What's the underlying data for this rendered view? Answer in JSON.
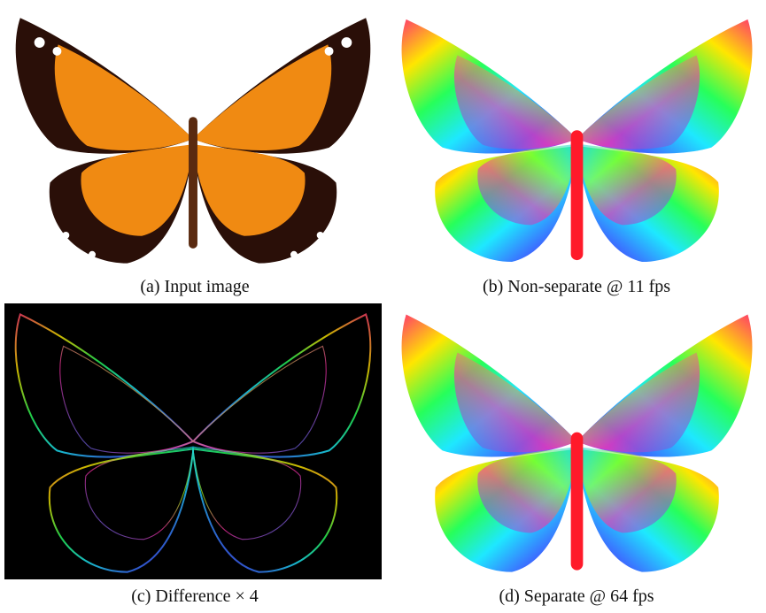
{
  "panels": [
    {
      "caption": "(a) Input image"
    },
    {
      "caption": "(b) Non-separate @ 11 fps"
    },
    {
      "caption": "(c) Difference × 4"
    },
    {
      "caption": "(d) Separate @ 64 fps"
    }
  ]
}
